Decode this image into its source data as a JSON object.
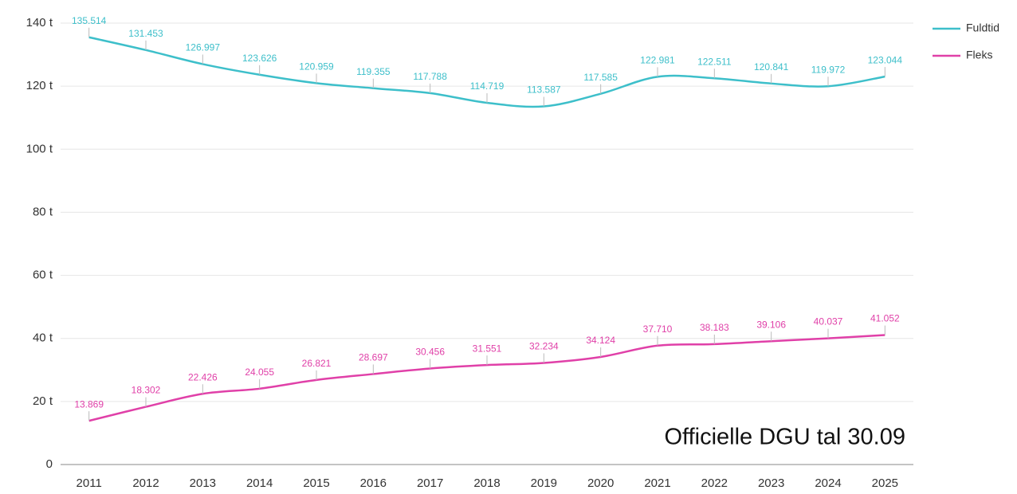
{
  "chart_data": {
    "type": "line",
    "categories": [
      "2011",
      "2012",
      "2013",
      "2014",
      "2015",
      "2016",
      "2017",
      "2018",
      "2019",
      "2020",
      "2021",
      "2022",
      "2023",
      "2024",
      "2025"
    ],
    "series": [
      {
        "name": "Fuldtid",
        "color": "#3dbfca",
        "values": [
          135514,
          131453,
          126997,
          123626,
          120959,
          119355,
          117788,
          114719,
          113587,
          117585,
          122981,
          122511,
          120841,
          119972,
          123044
        ],
        "value_labels": [
          "135.514",
          "131.453",
          "126.997",
          "123.626",
          "120.959",
          "119.355",
          "117.788",
          "114.719",
          "113.587",
          "117.585",
          "122.981",
          "122.511",
          "120.841",
          "119.972",
          "123.044"
        ]
      },
      {
        "name": "Fleks",
        "color": "#e040a8",
        "values": [
          13869,
          18302,
          22426,
          24055,
          26821,
          28697,
          30456,
          31551,
          32234,
          34124,
          37710,
          38183,
          39106,
          40037,
          41052
        ],
        "value_labels": [
          "13.869",
          "18.302",
          "22.426",
          "24.055",
          "26.821",
          "28.697",
          "30.456",
          "31.551",
          "32.234",
          "34.124",
          "37.710",
          "38.183",
          "39.106",
          "40.037",
          "41.052"
        ]
      }
    ],
    "ylim": [
      0,
      140000
    ],
    "yticks": [
      0,
      {
        "value": 20000,
        "label": "20 t"
      },
      {
        "value": 40000,
        "label": "40 t"
      },
      {
        "value": 60000,
        "label": "60 t"
      },
      {
        "value": 80000,
        "label": "80 t"
      },
      {
        "value": 100000,
        "label": "100 t"
      },
      {
        "value": 120000,
        "label": "120 t"
      },
      {
        "value": 140000,
        "label": "140 t"
      }
    ],
    "grid": true,
    "legend": "right",
    "annotation": "Officielle DGU tal 30.09"
  }
}
